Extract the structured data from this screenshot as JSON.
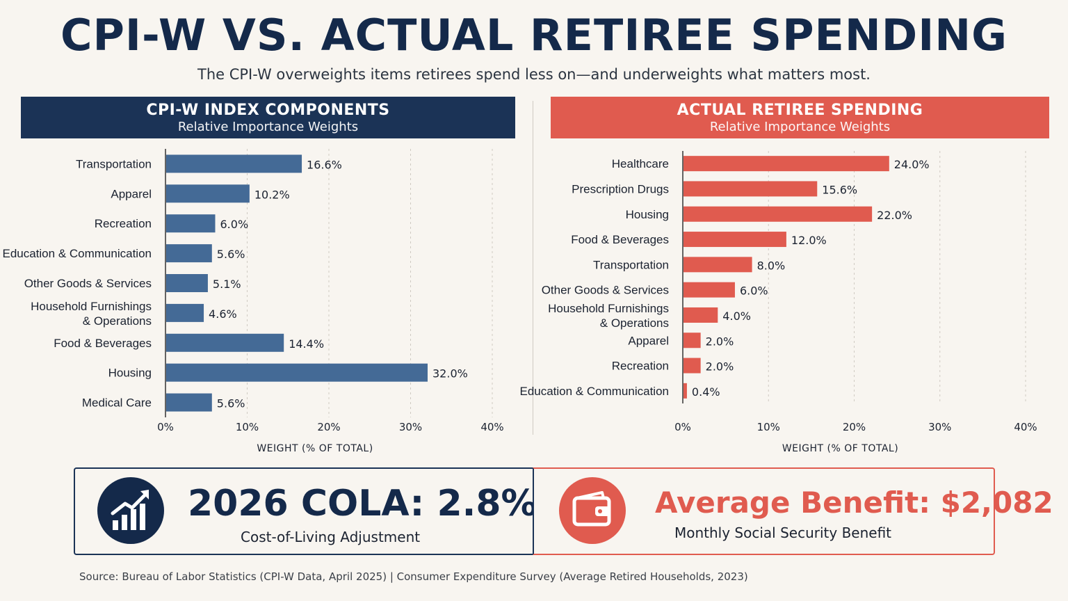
{
  "title": "CPI-W VS. ACTUAL RETIREE SPENDING",
  "subtitle": "The CPI-W overweights items retirees spend less on—and underweights what matters most.",
  "left_panel": {
    "title": "CPI-W INDEX COMPONENTS",
    "subtitle": "Relative Importance Weights",
    "color": "#446a96"
  },
  "right_panel": {
    "title": "ACTUAL RETIREE SPENDING",
    "subtitle": "Relative Importance Weights",
    "color": "#e05b4f"
  },
  "chart_data": [
    {
      "type": "bar",
      "orientation": "horizontal",
      "title": "CPI-W INDEX COMPONENTS",
      "subtitle": "Relative Importance Weights",
      "categories": [
        "Transportation",
        "Apparel",
        "Recreation",
        "Education & Communication",
        "Other Goods & Services",
        "Household Furnishings\n& Operations",
        "Food & Beverages",
        "Housing",
        "Medical Care"
      ],
      "values": [
        16.6,
        10.2,
        6.0,
        5.6,
        5.1,
        4.6,
        14.4,
        32.0,
        5.6
      ],
      "value_labels": [
        "16.6%",
        "10.2%",
        "6.0%",
        "5.6%",
        "5.1%",
        "4.6%",
        "14.4%",
        "32.0%",
        "5.6%"
      ],
      "xlabel": "WEIGHT (% OF TOTAL)",
      "xlim": [
        0,
        40
      ],
      "xticks": [
        "0%",
        "10%",
        "20%",
        "30%",
        "40%"
      ],
      "grid": "vertical dashed",
      "color": "#446a96"
    },
    {
      "type": "bar",
      "orientation": "horizontal",
      "title": "ACTUAL RETIREE SPENDING",
      "subtitle": "Relative Importance Weights",
      "categories": [
        "Healthcare",
        "Prescription Drugs",
        "Housing",
        "Food & Beverages",
        "Transportation",
        "Other Goods & Services",
        "Household Furnishings\n& Operations",
        "Apparel",
        "Recreation",
        "Education & Communication"
      ],
      "values": [
        24.0,
        15.6,
        22.0,
        12.0,
        8.0,
        6.0,
        4.0,
        2.0,
        2.0,
        0.4
      ],
      "value_labels": [
        "24.0%",
        "15.6%",
        "22.0%",
        "12.0%",
        "8.0%",
        "6.0%",
        "4.0%",
        "2.0%",
        "2.0%",
        "0.4%"
      ],
      "xlabel": "WEIGHT (% OF TOTAL)",
      "xlim": [
        0,
        40
      ],
      "xticks": [
        "0%",
        "10%",
        "20%",
        "30%",
        "40%"
      ],
      "grid": "vertical dashed",
      "color": "#e05b4f"
    }
  ],
  "stats": {
    "cola": {
      "headline": "2026 COLA: 2.8%",
      "caption": "Cost-of-Living Adjustment",
      "icon": "rising-bar-chart-icon"
    },
    "benefit": {
      "headline": "Average Benefit: $2,082",
      "caption": "Monthly Social Security Benefit",
      "icon": "wallet-icon"
    }
  },
  "source": "Source: Bureau of Labor Statistics (CPI-W Data, April 2025)  |  Consumer Expenditure Survey (Average Retired Households, 2023)"
}
